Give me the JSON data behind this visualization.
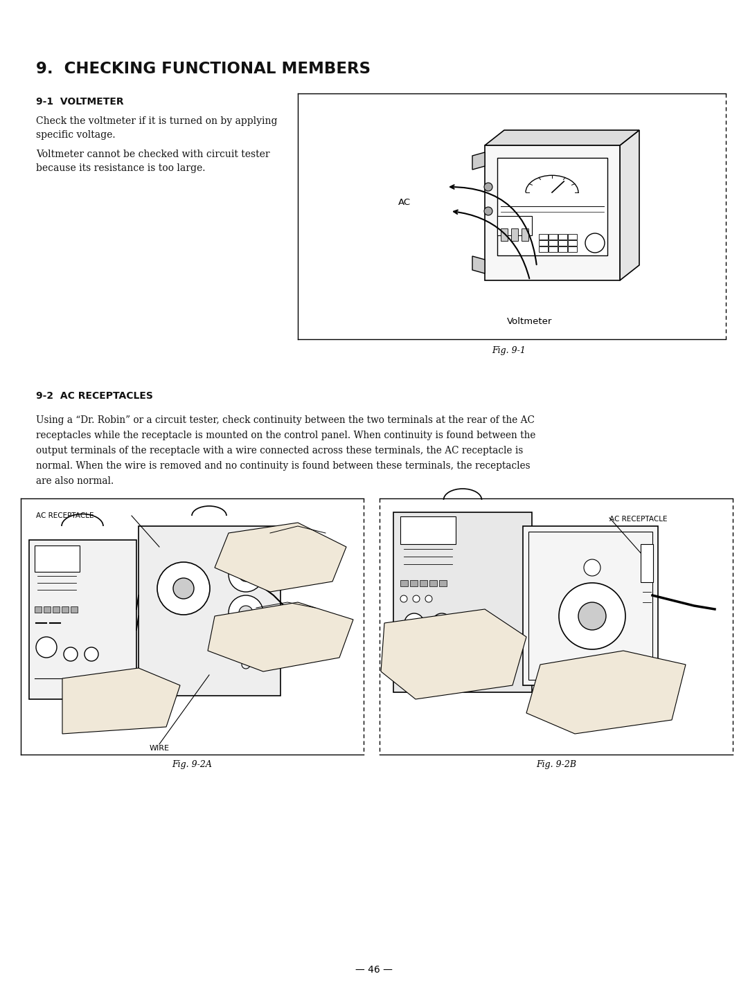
{
  "title": "9.  CHECKING FUNCTIONAL MEMBERS",
  "section1_heading": "9-1  VOLTMETER",
  "section1_text1": "Check the voltmeter if it is turned on by applying\nspecific voltage.",
  "section1_text2": "Voltmeter cannot be checked with circuit tester\nbecause its resistance is too large.",
  "fig1_caption": "Fig. 9-1",
  "section2_heading": "9-2  AC RECEPTACLES",
  "section2_text_line1": "Using a “Dr. Robin” or a circuit tester, check continuity between the two terminals at the rear of the AC",
  "section2_text_line2": "receptacles while the receptacle is mounted on the control panel. When continuity is found between the",
  "section2_text_line3": "output terminals of the receptacle with a wire connected across these terminals, the AC receptacle is",
  "section2_text_line4": "normal. When the wire is removed and no continuity is found between these terminals, the receptacles",
  "section2_text_line5": "are also normal.",
  "fig2a_label_ac": "AC RECEPTACLE",
  "fig2a_label_wire": "WIRE",
  "fig2a_caption": "Fig. 9-2A",
  "fig2b_label_ac": "AC RECEPTACLE",
  "fig2b_caption": "Fig. 9-2B",
  "page_number": "— 46 —",
  "bg_color": "#ffffff",
  "text_color": "#000000"
}
